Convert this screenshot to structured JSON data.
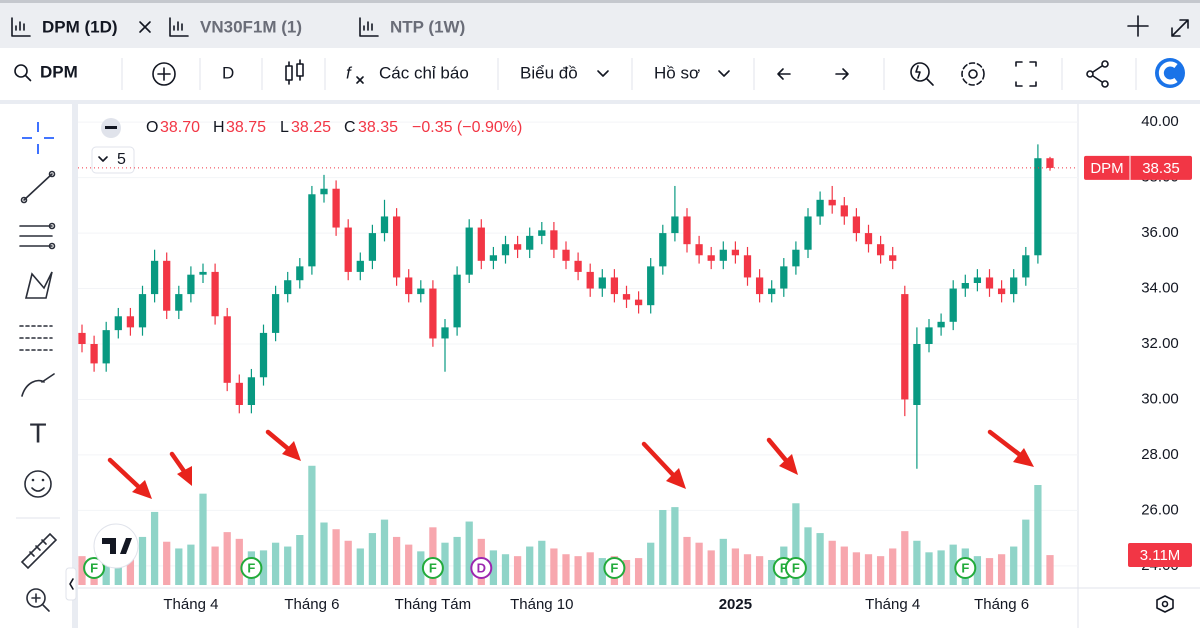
{
  "tabs": [
    "DPM (1D)",
    "VN30F1M (1)",
    "NTP (1W)"
  ],
  "toolbar": {
    "symbol": "DPM",
    "interval": "D",
    "indicators": "Các chỉ báo",
    "chart_type": "Biểu đồ",
    "profile": "Hồ sơ"
  },
  "legend_keys": [
    "O",
    "H",
    "L",
    "C"
  ],
  "last_labels": {
    "open": "38.70",
    "high": "38.75",
    "low": "38.25",
    "close": "38.35",
    "change": "−0.35 (−0.90%)"
  },
  "collapsed_count": "5",
  "last_volume_label": "3.11M",
  "chart_data": {
    "type": "candlestick",
    "ylim": [
      23.2,
      40.8
    ],
    "yticks": [
      {
        "value": 24,
        "label": "24.00"
      },
      {
        "value": 26,
        "label": "26.00"
      },
      {
        "value": 28,
        "label": "28.00"
      },
      {
        "value": 30,
        "label": "30.00"
      },
      {
        "value": 32,
        "label": "32.00"
      },
      {
        "value": 34,
        "label": "34.00"
      },
      {
        "value": 36,
        "label": "36.00"
      },
      {
        "value": 38,
        "label": "38.00"
      },
      {
        "value": 40,
        "label": "40.00"
      }
    ],
    "categories": [
      null,
      null,
      null,
      null,
      null,
      null,
      null,
      null,
      null,
      "Tháng 4",
      null,
      null,
      null,
      null,
      null,
      null,
      null,
      null,
      null,
      "Tháng 6",
      null,
      null,
      null,
      null,
      null,
      null,
      null,
      null,
      null,
      "Tháng Tám",
      null,
      null,
      null,
      null,
      null,
      null,
      null,
      null,
      "Tháng 10",
      null,
      null,
      null,
      null,
      null,
      null,
      null,
      null,
      null,
      null,
      null,
      null,
      null,
      null,
      null,
      "2025",
      null,
      null,
      null,
      null,
      null,
      null,
      null,
      null,
      null,
      null,
      null,
      null,
      "Tháng 4",
      null,
      null,
      null,
      null,
      null,
      null,
      null,
      null,
      "Tháng 6",
      null,
      null,
      null,
      null
    ],
    "events": [
      null,
      "F",
      null,
      null,
      null,
      null,
      null,
      null,
      null,
      null,
      null,
      null,
      null,
      null,
      "F",
      null,
      null,
      null,
      null,
      null,
      null,
      null,
      null,
      null,
      null,
      null,
      null,
      null,
      null,
      "F",
      null,
      null,
      null,
      "D",
      null,
      null,
      null,
      null,
      null,
      null,
      null,
      null,
      null,
      null,
      "F",
      null,
      null,
      null,
      null,
      null,
      null,
      null,
      null,
      null,
      null,
      null,
      null,
      null,
      "F",
      "F",
      null,
      null,
      null,
      null,
      null,
      null,
      null,
      null,
      null,
      null,
      null,
      null,
      null,
      "F",
      null,
      null,
      null,
      null,
      null,
      null,
      null
    ],
    "series": [
      {
        "name": "DPM",
        "up_color": "#089981",
        "down_color": "#f23645",
        "open": [
          32.4,
          32.0,
          31.3,
          32.5,
          33.0,
          32.6,
          33.8,
          35.0,
          33.2,
          33.8,
          34.5,
          34.6,
          33.0,
          30.6,
          29.8,
          30.8,
          32.4,
          33.8,
          34.3,
          34.8,
          37.4,
          37.6,
          36.2,
          34.6,
          35.0,
          36.0,
          36.6,
          34.4,
          33.8,
          34.0,
          32.2,
          32.6,
          34.5,
          36.2,
          35.0,
          35.2,
          35.6,
          35.4,
          35.9,
          36.1,
          35.4,
          35.0,
          34.6,
          34.0,
          34.4,
          33.8,
          33.6,
          33.4,
          34.8,
          36.0,
          36.6,
          35.6,
          35.2,
          35.0,
          35.4,
          35.2,
          34.4,
          33.8,
          34.0,
          34.8,
          35.4,
          36.6,
          37.2,
          37.0,
          36.6,
          36.0,
          35.6,
          35.2,
          33.8,
          29.8,
          32.0,
          32.6,
          32.8,
          34.0,
          34.2,
          34.4,
          34.0,
          33.8,
          34.4,
          35.2,
          38.7
        ],
        "high": [
          32.7,
          32.3,
          32.8,
          33.3,
          33.3,
          34.1,
          35.4,
          35.3,
          34.1,
          34.8,
          34.9,
          34.9,
          33.3,
          30.9,
          31.1,
          32.7,
          34.1,
          34.6,
          35.1,
          37.7,
          38.1,
          37.9,
          36.5,
          35.3,
          36.3,
          37.2,
          36.9,
          34.7,
          34.3,
          34.3,
          32.9,
          34.8,
          36.5,
          36.5,
          35.5,
          35.9,
          35.9,
          36.2,
          36.4,
          36.4,
          35.7,
          35.3,
          34.9,
          34.7,
          34.7,
          34.1,
          33.9,
          35.1,
          36.3,
          37.7,
          36.9,
          35.9,
          35.5,
          35.7,
          35.7,
          35.5,
          34.7,
          34.3,
          35.1,
          35.7,
          36.9,
          37.5,
          37.7,
          37.3,
          36.9,
          36.3,
          35.9,
          35.5,
          34.1,
          32.6,
          32.9,
          33.1,
          34.3,
          34.5,
          34.7,
          34.7,
          34.3,
          34.7,
          35.5,
          39.2,
          38.75
        ],
        "low": [
          31.7,
          31.0,
          31.0,
          32.2,
          32.3,
          32.3,
          33.5,
          32.9,
          32.9,
          33.5,
          34.2,
          32.7,
          30.3,
          29.5,
          29.5,
          30.5,
          32.1,
          33.5,
          34.0,
          34.5,
          37.1,
          35.9,
          34.3,
          34.3,
          34.7,
          35.7,
          34.1,
          33.5,
          33.5,
          31.9,
          31.0,
          32.3,
          34.2,
          34.7,
          34.7,
          34.9,
          35.1,
          35.1,
          35.6,
          35.1,
          34.7,
          34.3,
          33.7,
          33.7,
          33.5,
          33.3,
          33.1,
          33.1,
          34.5,
          35.7,
          35.3,
          34.9,
          34.7,
          34.7,
          34.9,
          34.1,
          33.5,
          33.5,
          33.7,
          34.5,
          35.1,
          36.3,
          36.7,
          36.3,
          35.7,
          35.3,
          34.9,
          34.7,
          29.4,
          27.5,
          31.7,
          32.3,
          32.5,
          33.7,
          33.9,
          33.7,
          33.5,
          33.5,
          34.1,
          34.9,
          38.25
        ],
        "close": [
          32.0,
          31.3,
          32.5,
          33.0,
          32.6,
          33.8,
          35.0,
          33.2,
          33.8,
          34.5,
          34.6,
          33.0,
          30.6,
          29.8,
          30.8,
          32.4,
          33.8,
          34.3,
          34.8,
          37.4,
          37.6,
          36.2,
          34.6,
          35.0,
          36.0,
          36.6,
          34.4,
          33.8,
          34.0,
          32.2,
          32.6,
          34.5,
          36.2,
          35.0,
          35.2,
          35.6,
          35.4,
          35.9,
          36.1,
          35.4,
          35.0,
          34.6,
          34.0,
          34.4,
          33.8,
          33.6,
          33.4,
          34.8,
          36.0,
          36.6,
          35.6,
          35.2,
          35.0,
          35.4,
          35.2,
          34.4,
          33.8,
          34.0,
          34.8,
          35.4,
          36.6,
          37.2,
          37.0,
          36.6,
          36.0,
          35.6,
          35.2,
          35.0,
          30.0,
          32.0,
          32.6,
          32.8,
          34.0,
          34.2,
          34.4,
          34.0,
          33.8,
          34.4,
          35.2,
          38.7,
          38.35
        ]
      }
    ],
    "volume": {
      "lim": [
        0,
        13
      ],
      "up_color": "#8fd4c8",
      "down_color": "#f7a7ae",
      "values": [
        3.0,
        2.5,
        3.2,
        2.8,
        3.5,
        5.0,
        7.6,
        4.5,
        3.8,
        4.2,
        9.5,
        4.0,
        5.5,
        4.8,
        3.5,
        3.6,
        4.4,
        4.0,
        5.2,
        12.4,
        6.5,
        5.8,
        4.6,
        3.8,
        5.4,
        6.8,
        5.0,
        4.2,
        3.5,
        6.0,
        4.4,
        5.0,
        6.6,
        4.8,
        3.6,
        3.2,
        3.0,
        4.0,
        4.6,
        3.8,
        3.2,
        3.0,
        3.4,
        2.8,
        3.0,
        2.6,
        2.8,
        4.4,
        7.8,
        8.1,
        5.0,
        4.4,
        3.6,
        4.8,
        3.8,
        3.2,
        3.0,
        2.6,
        4.0,
        8.5,
        6.0,
        5.4,
        4.6,
        4.0,
        3.4,
        3.2,
        3.0,
        3.8,
        5.6,
        4.6,
        3.4,
        3.6,
        4.2,
        3.8,
        3.0,
        2.8,
        3.2,
        4.0,
        6.8,
        10.4,
        3.11
      ]
    }
  }
}
